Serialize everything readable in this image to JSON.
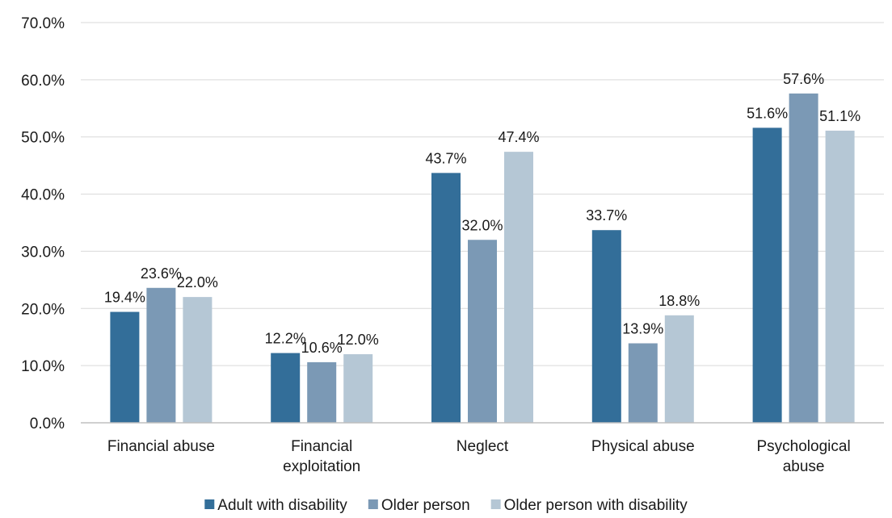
{
  "chart_data": {
    "type": "bar",
    "title": "",
    "xlabel": "",
    "ylabel": "",
    "ylim": [
      0,
      70
    ],
    "yticks": [
      0,
      10,
      20,
      30,
      40,
      50,
      60,
      70
    ],
    "ytick_labels": [
      "0.0%",
      "10.0%",
      "20.0%",
      "30.0%",
      "40.0%",
      "50.0%",
      "60.0%",
      "70.0%"
    ],
    "grid": "horizontal",
    "legend": "bottom",
    "categories": [
      [
        "Financial abuse"
      ],
      [
        "Financial",
        "exploitation"
      ],
      [
        "Neglect"
      ],
      [
        "Physical abuse"
      ],
      [
        "Psychological",
        "abuse"
      ]
    ],
    "series": [
      {
        "name": "Adult with disability",
        "color": "#336e99",
        "values": [
          19.4,
          12.2,
          43.7,
          33.7,
          51.6
        ],
        "labels": [
          "19.4%",
          "12.2%",
          "43.7%",
          "33.7%",
          "51.6%"
        ]
      },
      {
        "name": "Older person",
        "color": "#7b99b5",
        "values": [
          23.6,
          10.6,
          32.0,
          13.9,
          57.6
        ],
        "labels": [
          "23.6%",
          "10.6%",
          "32.0%",
          "13.9%",
          "57.6%"
        ]
      },
      {
        "name": "Older person with disability",
        "color": "#b5c7d5",
        "values": [
          22.0,
          12.0,
          47.4,
          18.8,
          51.1
        ],
        "labels": [
          "22.0%",
          "12.0%",
          "47.4%",
          "18.8%",
          "51.1%"
        ]
      }
    ]
  }
}
